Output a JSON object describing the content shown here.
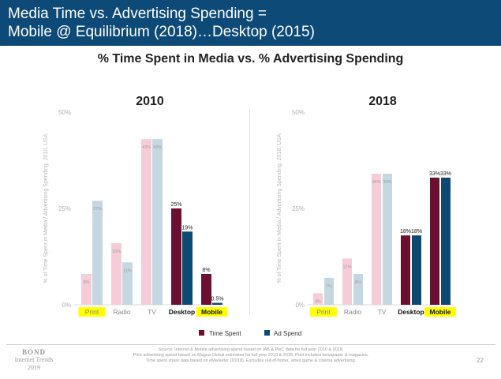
{
  "header": {
    "line1": "Media Time vs. Advertising Spending =",
    "line2": "Mobile @ Equilibrium (2018)…Desktop (2015)"
  },
  "subtitle": "% Time Spent in Media vs. % Advertising Spending",
  "chart_data": [
    {
      "type": "bar",
      "title": "2010",
      "ylabel": "% of Time Spent in Media / Advertising Spending, 2010, USA",
      "ylim": [
        0,
        50
      ],
      "yticks": [
        "0%",
        "25%",
        "50%"
      ],
      "categories": [
        "Print",
        "Radio",
        "TV",
        "Desktop",
        "Mobile"
      ],
      "series": [
        {
          "name": "Time Spent",
          "values": [
            8,
            16,
            43,
            25,
            8
          ],
          "labels": [
            "8%",
            "16%",
            "43%",
            "25%",
            "8%"
          ]
        },
        {
          "name": "Ad Spend",
          "values": [
            27,
            11,
            43,
            19,
            0.5
          ],
          "labels": [
            "27%",
            "11%",
            "43%",
            "19%",
            "0.5%"
          ]
        }
      ],
      "legend": "bottom",
      "grid": false
    },
    {
      "type": "bar",
      "title": "2018",
      "ylabel": "% of Time Spent in Media / Advertising Spending, 2018, USA",
      "ylim": [
        0,
        50
      ],
      "yticks": [
        "0%",
        "25%",
        "50%"
      ],
      "categories": [
        "Print",
        "Radio",
        "TV",
        "Desktop",
        "Mobile"
      ],
      "series": [
        {
          "name": "Time Spent",
          "values": [
            3,
            12,
            34,
            18,
            33
          ],
          "labels": [
            "3%",
            "12%",
            "34%",
            "18%",
            "33%"
          ]
        },
        {
          "name": "Ad Spend",
          "values": [
            7,
            8,
            34,
            18,
            33
          ],
          "labels": [
            "7%",
            "8%",
            "34%",
            "18%",
            "33%"
          ]
        }
      ],
      "legend": "bottom",
      "grid": false
    }
  ],
  "colors": {
    "traditional_time": "#f6ccd9",
    "traditional_ad": "#c5d7e0",
    "digital_time": "#6b1030",
    "digital_ad": "#0c4a73",
    "highlight": "#ffff00",
    "header_bg": "#0e4a78"
  },
  "digital_categories": [
    "Desktop",
    "Mobile"
  ],
  "highlighted_categories": [
    "Print",
    "Mobile"
  ],
  "legend": {
    "time_label": "Time Spent",
    "ad_label": "Ad Spend"
  },
  "footer": {
    "logo_name": "BOND",
    "logo_sub1": "Internet Trends",
    "logo_sub2": "2019",
    "source_lines": [
      "Source: Internet & Mobile advertising spend based on IAB & PwC data for full year 2010 & 2018.",
      "Print advertising spend based on Magna Global estimates for full year 2010 & 2018. Print includes newspaper & magazine.",
      "Time spent share data based on eMarketer (10/18). Excludes out-of-home, video game & cinema advertising."
    ],
    "page_number": "22"
  }
}
